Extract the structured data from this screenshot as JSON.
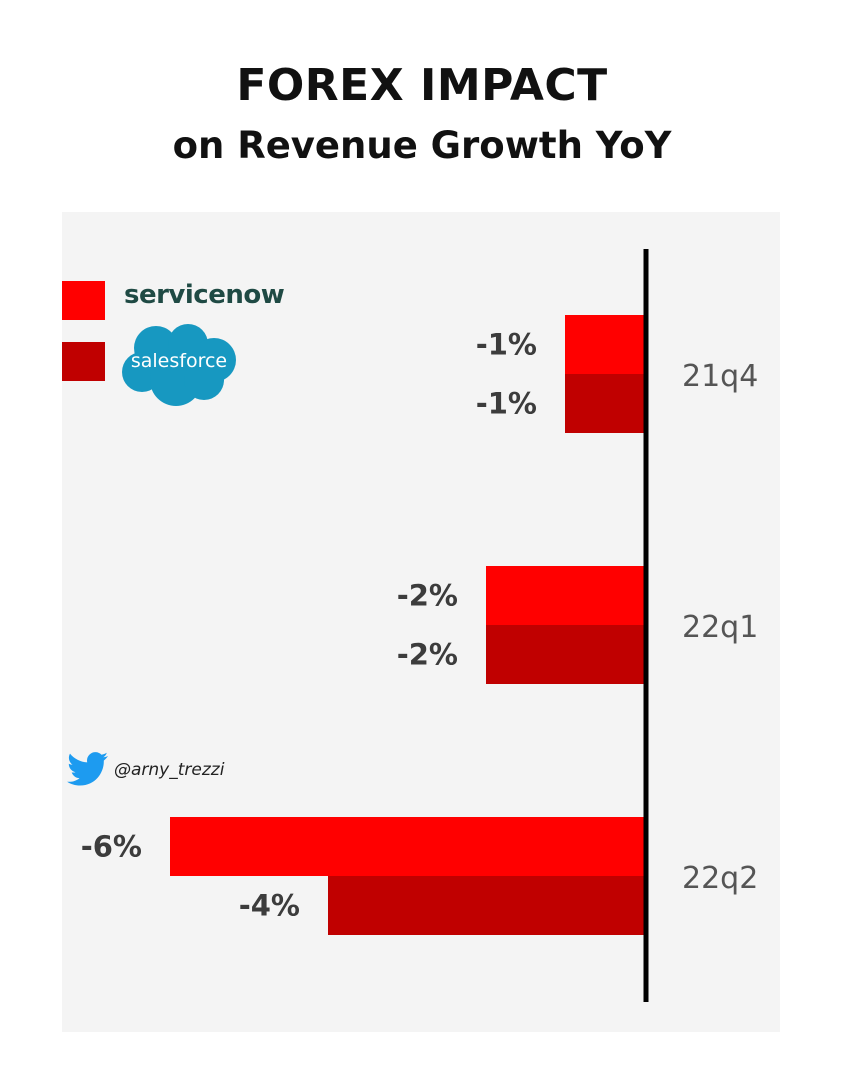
{
  "header": {
    "title": "FOREX IMPACT",
    "subtitle": "on Revenue Growth YoY"
  },
  "legend": {
    "items": [
      {
        "name": "servicenow",
        "color": "#ff0000"
      },
      {
        "name": "salesforce",
        "color": "#c00000"
      }
    ]
  },
  "credit": {
    "handle": "@arny_trezzi",
    "icon": "twitter-icon"
  },
  "chart_data": {
    "type": "bar",
    "orientation": "horizontal",
    "title": "FOREX IMPACT",
    "subtitle": "on Revenue Growth YoY",
    "categories": [
      "21q4",
      "22q1",
      "22q2"
    ],
    "series": [
      {
        "name": "servicenow",
        "color": "#ff0000",
        "values": [
          -1,
          -2,
          -6
        ],
        "labels": [
          "-1%",
          "-2%",
          "-6%"
        ]
      },
      {
        "name": "salesforce",
        "color": "#c00000",
        "values": [
          -1,
          -2,
          -4
        ],
        "labels": [
          "-1%",
          "-2%",
          "-4%"
        ]
      }
    ],
    "unit": "%",
    "grid": false,
    "legend_position": "top-left"
  }
}
